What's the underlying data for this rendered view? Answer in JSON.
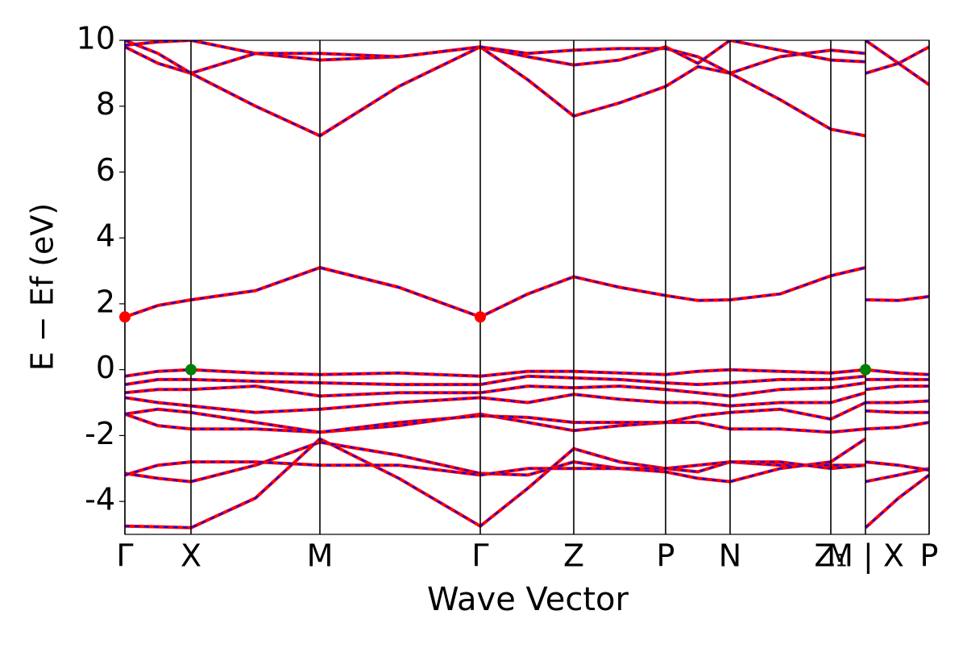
{
  "chart_data": {
    "type": "line",
    "x_label": "Wave Vector",
    "y_label": "E − Ef (eV)",
    "xlim": [
      0,
      9.98
    ],
    "ylim": [
      -5,
      10
    ],
    "xticks": [
      {
        "value": 0,
        "label": "Γ"
      },
      {
        "value": 0.82,
        "label": "X"
      },
      {
        "value": 2.42,
        "label": "M"
      },
      {
        "value": 4.41,
        "label": "Γ"
      },
      {
        "value": 5.57,
        "label": "Z"
      },
      {
        "value": 6.71,
        "label": "P"
      },
      {
        "value": 7.51,
        "label": "N"
      },
      {
        "value": 8.76,
        "label": "Z₁"
      },
      {
        "value": 9.19,
        "label": "M | X"
      },
      {
        "value": 9.98,
        "label": "P"
      }
    ],
    "yticks": [
      -4,
      -2,
      0,
      2,
      4,
      6,
      8,
      10
    ],
    "dash_color": "#0000ff",
    "x": [
      0,
      0.41,
      0.82,
      1.62,
      2.42,
      3.4,
      4.41,
      5.0,
      5.57,
      6.14,
      6.71,
      7.11,
      7.51,
      8.13,
      8.76,
      9.19,
      9.19,
      9.19,
      9.6,
      9.98
    ],
    "series": [
      {
        "color": "#ff0000",
        "values": [
          -4.75,
          -4.77,
          -4.8,
          -3.9,
          -2.1,
          -3.3,
          -4.75,
          -3.6,
          -2.4,
          -2.8,
          -3.0,
          -3.1,
          -2.8,
          -2.9,
          -2.9,
          -2.9,
          null,
          -4.8,
          -3.9,
          -3.2
        ]
      },
      {
        "color": "#ff0000",
        "values": [
          -3.15,
          -3.3,
          -3.4,
          -2.9,
          -2.2,
          -2.6,
          -3.15,
          -3.2,
          -2.8,
          -3.0,
          -3.1,
          -3.3,
          -3.4,
          -3.0,
          -2.8,
          -2.1,
          null,
          -3.4,
          -3.2,
          -3.0
        ]
      },
      {
        "color": "#ff0000",
        "values": [
          -3.2,
          -2.9,
          -2.8,
          -2.8,
          -2.9,
          -2.9,
          -3.2,
          -3.0,
          -3.0,
          -3.0,
          -3.0,
          -2.9,
          -2.8,
          -2.8,
          -3.0,
          -2.9,
          null,
          -2.8,
          -2.9,
          -3.05
        ]
      },
      {
        "color": "#ff0000",
        "values": [
          -1.35,
          -1.7,
          -1.8,
          -1.8,
          -1.9,
          -1.7,
          -1.35,
          -1.6,
          -1.85,
          -1.7,
          -1.6,
          -1.6,
          -1.8,
          -1.8,
          -1.9,
          -1.8,
          null,
          -1.8,
          -1.75,
          -1.6
        ]
      },
      {
        "color": "#ff0000",
        "values": [
          -1.35,
          -1.2,
          -1.3,
          -1.6,
          -1.9,
          -1.6,
          -1.4,
          -1.45,
          -1.6,
          -1.6,
          -1.6,
          -1.4,
          -1.3,
          -1.2,
          -1.5,
          -1.0,
          null,
          -1.25,
          -1.3,
          -1.3
        ]
      },
      {
        "color": "#ff0000",
        "values": [
          -0.85,
          -1.0,
          -1.1,
          -1.3,
          -1.2,
          -1.0,
          -0.85,
          -1.0,
          -0.75,
          -0.9,
          -1.0,
          -1.0,
          -1.1,
          -1.0,
          -1.0,
          -0.7,
          null,
          -1.0,
          -1.0,
          -0.95
        ]
      },
      {
        "color": "#ff0000",
        "values": [
          -0.7,
          -0.6,
          -0.6,
          -0.5,
          -0.8,
          -0.7,
          -0.7,
          -0.5,
          -0.55,
          -0.5,
          -0.6,
          -0.7,
          -0.8,
          -0.6,
          -0.55,
          -0.4,
          null,
          -0.6,
          -0.5,
          -0.5
        ]
      },
      {
        "color": "#ff0000",
        "values": [
          -0.45,
          -0.3,
          -0.3,
          -0.35,
          -0.4,
          -0.45,
          -0.45,
          -0.2,
          -0.25,
          -0.3,
          -0.4,
          -0.45,
          -0.4,
          -0.3,
          -0.3,
          -0.2,
          null,
          -0.3,
          -0.3,
          -0.3
        ]
      },
      {
        "color": "#ff0000",
        "values": [
          -0.2,
          -0.05,
          0,
          -0.1,
          -0.15,
          -0.1,
          -0.2,
          -0.05,
          -0.05,
          -0.1,
          -0.15,
          -0.05,
          0,
          -0.05,
          -0.1,
          0,
          null,
          0,
          -0.1,
          -0.15
        ]
      },
      {
        "color": "#ff0000",
        "values": [
          1.6,
          1.95,
          2.12,
          2.4,
          3.1,
          2.5,
          1.6,
          2.3,
          2.82,
          2.5,
          2.25,
          2.1,
          2.12,
          2.3,
          2.85,
          3.1,
          null,
          2.12,
          2.1,
          2.22
        ]
      },
      {
        "color": "#ff0000",
        "values": [
          9.8,
          9.3,
          9.0,
          8.0,
          7.1,
          8.6,
          9.8,
          8.8,
          7.7,
          8.1,
          8.6,
          9.2,
          9.0,
          8.2,
          7.3,
          7.1,
          null,
          9.0,
          9.3,
          9.8
        ]
      },
      {
        "color": "#ff0000",
        "values": [
          9.85,
          9.95,
          10.0,
          9.6,
          9.4,
          9.5,
          9.8,
          9.5,
          9.25,
          9.4,
          9.8,
          9.3,
          10.0,
          9.7,
          9.4,
          9.35,
          null,
          10.0,
          9.3,
          8.65
        ]
      },
      {
        "color": "#ff0000",
        "values": [
          10.0,
          9.6,
          9.0,
          9.6,
          9.6,
          9.5,
          9.8,
          9.6,
          9.7,
          9.75,
          9.75,
          9.5,
          9.0,
          9.5,
          9.7,
          9.6,
          null,
          null,
          null,
          null
        ]
      }
    ],
    "markers": {
      "x": [
        0,
        4.41,
        0.82,
        9.19
      ],
      "values": [
        1.6,
        1.6,
        0,
        0
      ],
      "colors": [
        "#ff0000",
        "#ff0000",
        "#008000",
        "#008000"
      ]
    }
  }
}
